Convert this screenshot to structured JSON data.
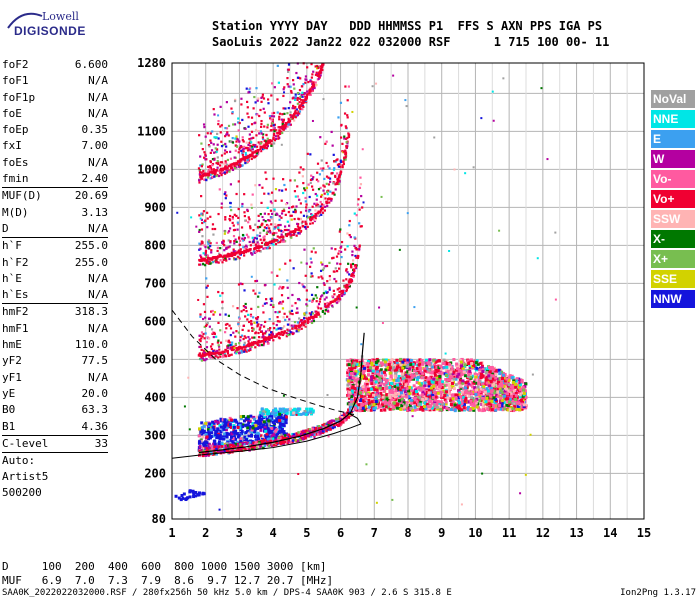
{
  "logo": {
    "line1": "Lowell",
    "line2": "DIGISONDE"
  },
  "header": {
    "line1": "Station YYYY DAY   DDD HHMMSS P1  FFS S AXN PPS IGA PS",
    "line2": "SaoLuis 2022 Jan22 022 032000 RSF      1 715 100 00- 11"
  },
  "params": [
    {
      "label": "foF2",
      "value": "6.600"
    },
    {
      "label": "foF1",
      "value": "N/A"
    },
    {
      "label": "foF1p",
      "value": "N/A"
    },
    {
      "label": "foE",
      "value": "N/A"
    },
    {
      "label": "foEp",
      "value": "0.35"
    },
    {
      "label": "fxI",
      "value": "7.00"
    },
    {
      "label": "foEs",
      "value": "N/A"
    },
    {
      "label": "fmin",
      "value": "2.40"
    },
    {
      "sep": true
    },
    {
      "label": "MUF(D)",
      "value": "20.69"
    },
    {
      "label": "M(D)",
      "value": "3.13"
    },
    {
      "label": "D",
      "value": "N/A"
    },
    {
      "sep": true
    },
    {
      "label": "h`F",
      "value": "255.0"
    },
    {
      "label": "h`F2",
      "value": "255.0"
    },
    {
      "label": "h`E",
      "value": "N/A"
    },
    {
      "label": "h`Es",
      "value": "N/A"
    },
    {
      "sep": true
    },
    {
      "label": "hmF2",
      "value": "318.3"
    },
    {
      "label": "hmF1",
      "value": "N/A"
    },
    {
      "label": "hmE",
      "value": "110.0"
    },
    {
      "label": "yF2",
      "value": "77.5"
    },
    {
      "label": "yF1",
      "value": "N/A"
    },
    {
      "label": "yE",
      "value": "20.0"
    },
    {
      "label": "B0",
      "value": "63.3"
    },
    {
      "label": "B1",
      "value": "4.36"
    },
    {
      "sep": true
    },
    {
      "label": "C-level",
      "value": "33"
    },
    {
      "sep": true
    },
    {
      "text": "Auto:"
    },
    {
      "text": "Artist5"
    },
    {
      "text": "500200"
    }
  ],
  "legend": [
    {
      "label": "NoVal",
      "color": "#a0a0a0"
    },
    {
      "label": "NNE",
      "color": "#00e6e6"
    },
    {
      "label": "E",
      "color": "#3ca0f0"
    },
    {
      "label": "W",
      "color": "#b400a0"
    },
    {
      "label": "Vo-",
      "color": "#ff5aa0"
    },
    {
      "label": "Vo+",
      "color": "#f00032"
    },
    {
      "label": "SSW",
      "color": "#ffb4b4"
    },
    {
      "label": "X-",
      "color": "#007800"
    },
    {
      "label": "X+",
      "color": "#78be50"
    },
    {
      "label": "SSE",
      "color": "#d2d200"
    },
    {
      "label": "NNW",
      "color": "#1414dc"
    }
  ],
  "bottom": {
    "d_row": "D     100  200  400  600  800 1000 1500 3000 [km]",
    "muf_row": "MUF   6.9  7.0  7.3  7.9  8.6  9.7 12.7 20.7 [MHz]"
  },
  "footer": {
    "left": "SAA0K_2022022032000.RSF / 280fx256h 50 kHz 5.0 km / DPS-4 SAA0K 903 / 2.6 S 315.8 E",
    "right": "Ion2Png 1.3.17"
  },
  "chart_data": {
    "type": "scatter",
    "xlim": [
      1,
      15
    ],
    "ylim": [
      80,
      1280
    ],
    "x_ticks": [
      1,
      2,
      3,
      4,
      5,
      6,
      7,
      8,
      9,
      10,
      11,
      12,
      13,
      14,
      15
    ],
    "y_ticks": [
      80,
      200,
      300,
      400,
      500,
      600,
      700,
      800,
      900,
      1000,
      1100,
      1280
    ],
    "y_grid": [
      80,
      200,
      300,
      400,
      500,
      600,
      700,
      800,
      900,
      1000,
      1100,
      1200,
      1280
    ],
    "o_trace": [
      [
        1.8,
        255
      ],
      [
        2.5,
        262
      ],
      [
        3.2,
        270
      ],
      [
        4.0,
        282
      ],
      [
        4.8,
        298
      ],
      [
        5.5,
        318
      ],
      [
        6.0,
        338
      ],
      [
        6.3,
        360
      ],
      [
        6.5,
        400
      ],
      [
        6.6,
        460
      ],
      [
        6.65,
        520
      ],
      [
        6.7,
        570
      ]
    ],
    "multi_hop": [
      {
        "x": [
          1.8,
          2.5,
          3.2,
          4.0,
          4.8,
          5.5,
          6.0,
          6.3,
          6.5,
          6.6,
          6.65
        ],
        "y": [
          510,
          520,
          535,
          560,
          590,
          630,
          670,
          710,
          760,
          830,
          880
        ]
      },
      {
        "x": [
          1.8,
          2.5,
          3.2,
          4.0,
          4.8,
          5.4,
          5.8,
          6.0,
          6.15,
          6.25
        ],
        "y": [
          760,
          770,
          785,
          810,
          845,
          890,
          940,
          990,
          1040,
          1090
        ]
      },
      {
        "x": [
          1.8,
          2.5,
          3.2,
          4.0,
          4.6,
          5.0,
          5.3,
          5.5
        ],
        "y": [
          980,
          1000,
          1030,
          1080,
          1140,
          1190,
          1240,
          1280
        ]
      }
    ],
    "profile_curve": {
      "x": [
        1.0,
        2.0,
        3.0,
        4.0,
        5.0,
        5.8,
        6.3,
        6.6,
        6.5,
        6.2
      ],
      "y": [
        240,
        250,
        258,
        268,
        285,
        305,
        320,
        330,
        345,
        360
      ]
    },
    "dashed_curve": {
      "x": [
        1.0,
        1.6,
        2.3,
        3.0,
        3.8,
        4.6,
        5.3,
        5.9,
        6.4
      ],
      "y": [
        630,
        560,
        500,
        460,
        425,
        400,
        380,
        365,
        355
      ]
    }
  }
}
